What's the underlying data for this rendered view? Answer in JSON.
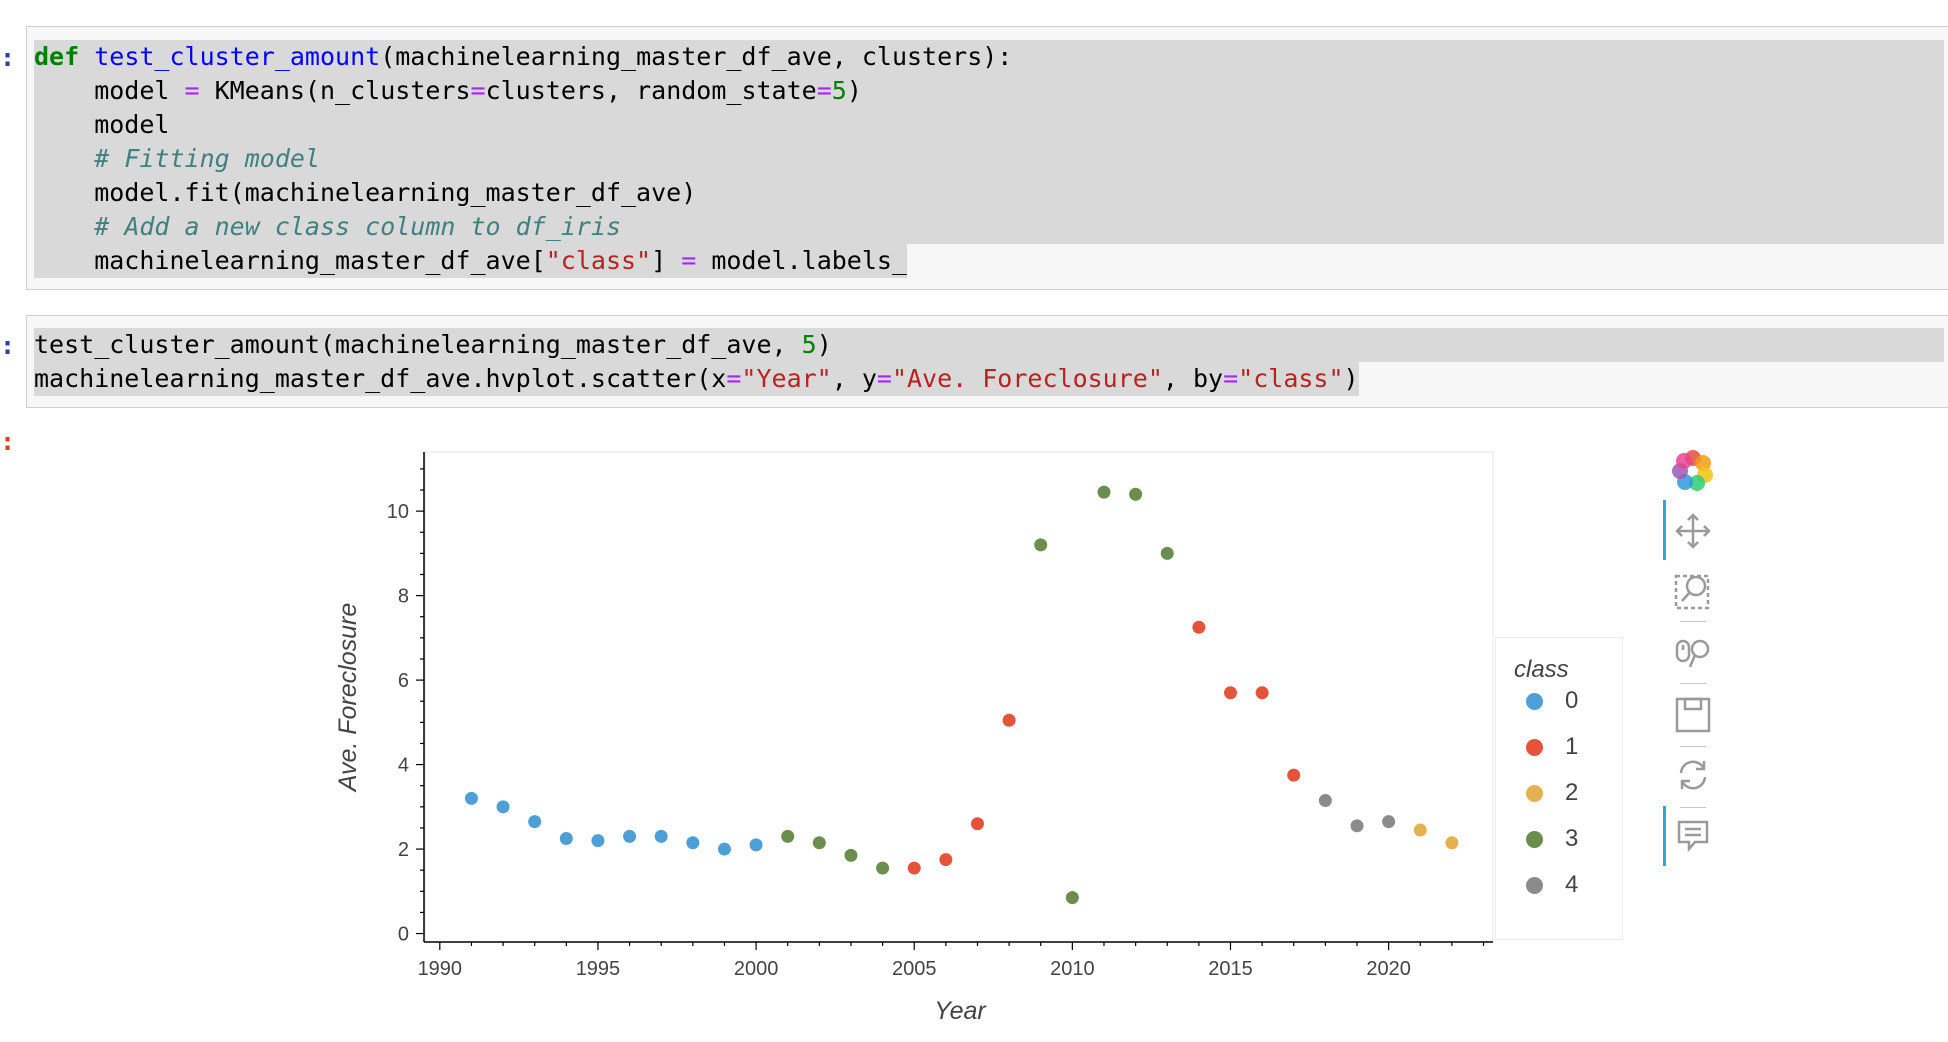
{
  "cells": {
    "cell1": {
      "prompt": ":",
      "lines": [
        [
          {
            "t": "def",
            "c": "kw"
          },
          {
            "t": " "
          },
          {
            "t": "test_cluster_amount",
            "c": "fn"
          },
          {
            "t": "(machinelearning_master_df_ave, clusters):"
          }
        ],
        [
          {
            "t": "    model "
          },
          {
            "t": "=",
            "c": "op"
          },
          {
            "t": " KMeans(n_clusters"
          },
          {
            "t": "=",
            "c": "op"
          },
          {
            "t": "clusters, random_state"
          },
          {
            "t": "=",
            "c": "op"
          },
          {
            "t": "5",
            "c": "num"
          },
          {
            "t": ")"
          }
        ],
        [
          {
            "t": "    model"
          }
        ],
        [
          {
            "t": "    "
          },
          {
            "t": "# Fitting model",
            "c": "cm"
          }
        ],
        [
          {
            "t": "    model.fit(machinelearning_master_df_ave)"
          }
        ],
        [
          {
            "t": "    "
          },
          {
            "t": "# Add a new class column to df_iris",
            "c": "cm"
          }
        ],
        [
          {
            "t": "    machinelearning_master_df_ave["
          },
          {
            "t": "\"class\"",
            "c": "str"
          },
          {
            "t": "] "
          },
          {
            "t": "=",
            "c": "op"
          },
          {
            "t": " model.labels_"
          }
        ]
      ]
    },
    "cell2": {
      "prompt": ":",
      "lines": [
        [
          {
            "t": "test_cluster_amount(machinelearning_master_df_ave, "
          },
          {
            "t": "5",
            "c": "num"
          },
          {
            "t": ")"
          }
        ],
        [
          {
            "t": "machinelearning_master_df_ave.hvplot.scatter(x"
          },
          {
            "t": "=",
            "c": "op"
          },
          {
            "t": "\"Year\"",
            "c": "str"
          },
          {
            "t": ", y"
          },
          {
            "t": "=",
            "c": "op"
          },
          {
            "t": "\"Ave. Foreclosure\"",
            "c": "str"
          },
          {
            "t": ", by"
          },
          {
            "t": "=",
            "c": "op"
          },
          {
            "t": "\"class\"",
            "c": "str"
          },
          {
            "t": ")"
          }
        ]
      ]
    },
    "output_prompt": ":"
  },
  "toolbar": {
    "tools": [
      "bokeh-logo-icon",
      "pan-icon",
      "box-zoom-icon",
      "wheel-zoom-icon",
      "save-icon",
      "reset-icon",
      "hover-icon"
    ]
  },
  "colors": {
    "class0": "#4e9fd8",
    "class1": "#e4543a",
    "class2": "#e3b14f",
    "class3": "#6b8e4e",
    "class4": "#8b8b8b"
  },
  "chart_data": {
    "type": "scatter",
    "xlabel": "Year",
    "ylabel": "Ave. Foreclosure",
    "xlim": [
      1989.5,
      2023.3
    ],
    "ylim": [
      -0.2,
      11.4
    ],
    "xticks": [
      1990,
      1995,
      2000,
      2005,
      2010,
      2015,
      2020
    ],
    "yticks": [
      0,
      2,
      4,
      6,
      8,
      10
    ],
    "grid": false,
    "legend_title": "class",
    "legend_placement": "right",
    "series": [
      {
        "name": "0",
        "points": [
          [
            1991,
            3.2
          ],
          [
            1992,
            3.0
          ],
          [
            1993,
            2.65
          ],
          [
            1994,
            2.25
          ],
          [
            1995,
            2.2
          ],
          [
            1996,
            2.3
          ],
          [
            1997,
            2.3
          ],
          [
            1998,
            2.15
          ],
          [
            1999,
            2.0
          ],
          [
            2000,
            2.1
          ]
        ]
      },
      {
        "name": "1",
        "points": [
          [
            2005,
            1.55
          ],
          [
            2006,
            1.75
          ],
          [
            2007,
            2.6
          ],
          [
            2008,
            5.05
          ],
          [
            2014,
            7.25
          ],
          [
            2015,
            5.7
          ],
          [
            2016,
            5.7
          ],
          [
            2017,
            3.75
          ]
        ]
      },
      {
        "name": "2",
        "points": [
          [
            2021,
            2.45
          ],
          [
            2022,
            2.15
          ]
        ]
      },
      {
        "name": "3",
        "points": [
          [
            2001,
            2.3
          ],
          [
            2002,
            2.15
          ],
          [
            2003,
            1.85
          ],
          [
            2004,
            1.55
          ],
          [
            2009,
            9.2
          ],
          [
            2010,
            0.85
          ],
          [
            2011,
            10.45
          ],
          [
            2012,
            10.4
          ],
          [
            2013,
            9.0
          ]
        ]
      },
      {
        "name": "4",
        "points": [
          [
            2018,
            3.15
          ],
          [
            2019,
            2.55
          ],
          [
            2020,
            2.65
          ]
        ]
      }
    ]
  }
}
